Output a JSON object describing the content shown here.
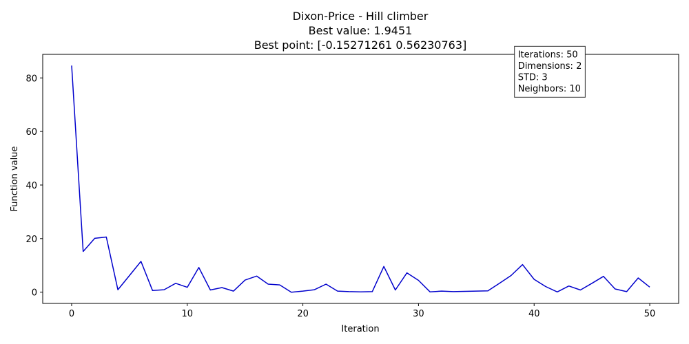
{
  "chart_data": {
    "type": "line",
    "title": "Dixon-Price - Hill climber",
    "subtitle_lines": [
      "Best value: 1.9451",
      "Best point: [-0.15271261  0.56230763]"
    ],
    "xlabel": "Iteration",
    "ylabel": "Function value",
    "xlim": [
      -2.5,
      52.5
    ],
    "ylim": [
      -4.2,
      88.8
    ],
    "xticks": [
      0,
      10,
      20,
      30,
      40,
      50
    ],
    "yticks": [
      0,
      20,
      40,
      60,
      80
    ],
    "grid": false,
    "line_color": "#0000cc",
    "series": [
      {
        "x": [
          0,
          1,
          2,
          3,
          4,
          5,
          6,
          7,
          8,
          9,
          10,
          11,
          12,
          13,
          14,
          15,
          16,
          17,
          18,
          19,
          20,
          21,
          22,
          23,
          24,
          25,
          26,
          27,
          28,
          29,
          30,
          31,
          32,
          33,
          34,
          35,
          36,
          37,
          38,
          39,
          40,
          41,
          42,
          43,
          44,
          45,
          46,
          47,
          48,
          49,
          50
        ],
        "values": [
          84.6,
          15.2,
          20.1,
          20.6,
          0.9,
          6.2,
          11.5,
          0.6,
          0.9,
          3.3,
          1.8,
          9.2,
          0.8,
          1.7,
          0.4,
          4.5,
          6.0,
          3.0,
          2.7,
          0.0,
          0.4,
          0.9,
          3.0,
          0.4,
          0.2,
          0.1,
          0.2,
          9.6,
          0.8,
          7.2,
          4.4,
          0.1,
          0.4,
          0.2,
          0.3,
          0.4,
          0.5,
          3.3,
          6.2,
          10.3,
          4.8,
          2.1,
          0.1,
          2.3,
          0.8,
          3.3,
          5.9,
          1.2,
          0.2,
          5.3,
          1.9
        ]
      }
    ],
    "info_box": {
      "lines": [
        "Iterations: 50",
        "Dimensions: 2",
        "STD: 3",
        "Neighbors: 10"
      ],
      "x": 38.3,
      "y": 91.8
    }
  }
}
